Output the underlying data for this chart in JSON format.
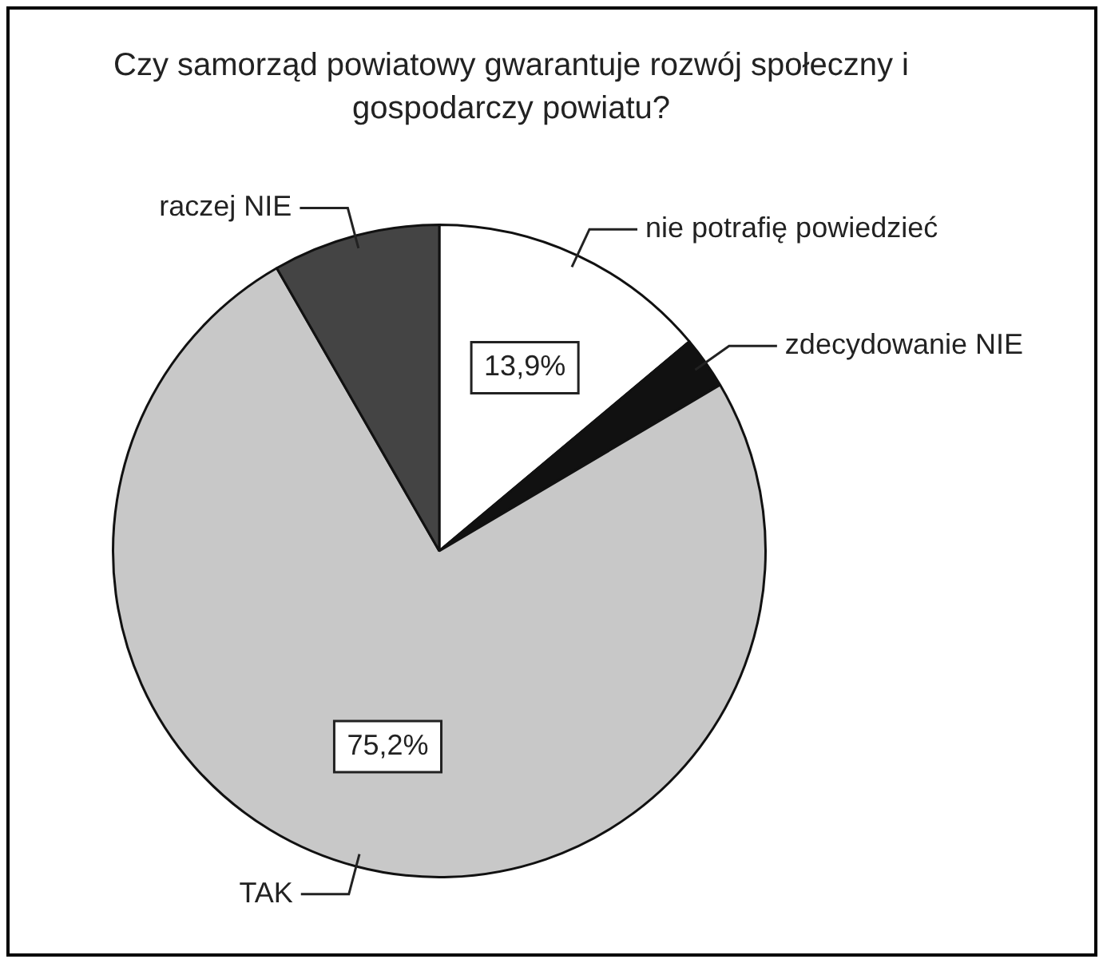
{
  "chart_data": {
    "type": "pie",
    "title": "Czy samorząd powiatowy gwarantuje rozwój społeczny i gospodarczy powiatu?",
    "categories": [
      "nie potrafię powiedzieć",
      "zdecydowanie NIE",
      "TAK",
      "raczej NIE"
    ],
    "values": [
      13.9,
      2.6,
      75.2,
      8.3
    ],
    "colors": [
      "#ffffff",
      "#111111",
      "#c8c8c8",
      "#444444"
    ],
    "value_labels": [
      "13,9%",
      null,
      "75,2%",
      null
    ],
    "legend": false
  }
}
